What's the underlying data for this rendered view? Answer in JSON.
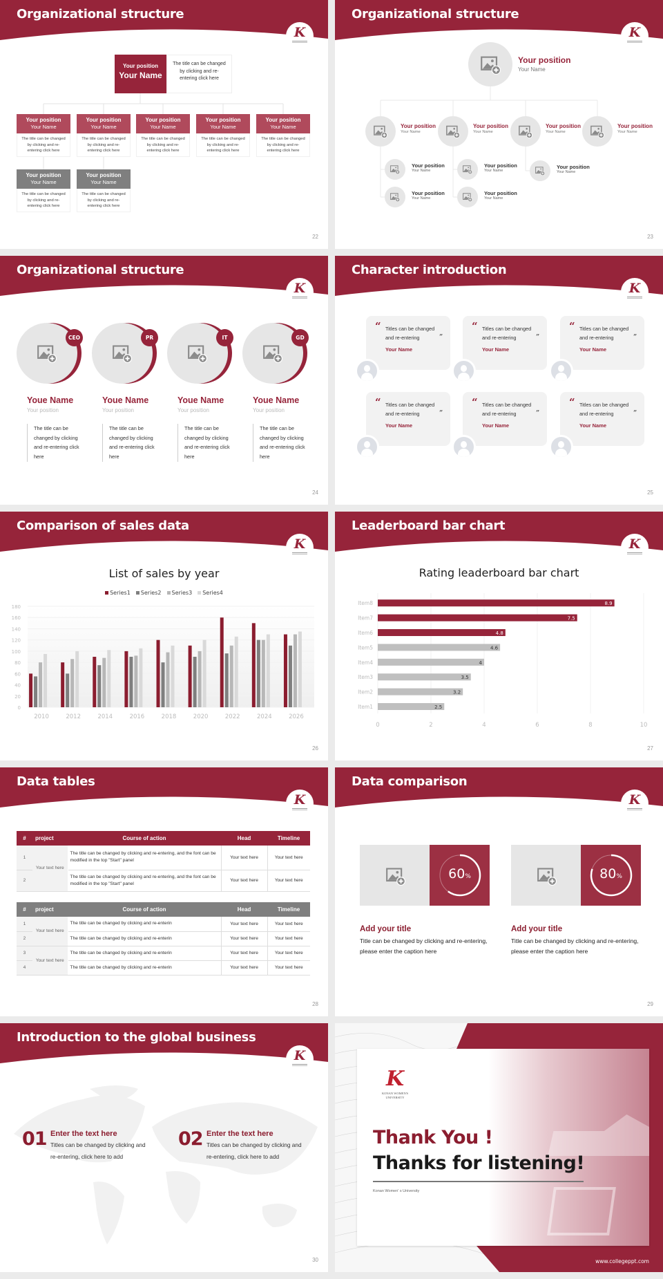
{
  "colors": {
    "accent": "#96243a",
    "gray": "#7f7f7f",
    "light_gray": "#e6e6e6",
    "bar_gray": "#bfbfbf"
  },
  "logo": {
    "letter": "K",
    "caption": "KONAN WOMEN'S UNIVERSITY"
  },
  "slides": {
    "s22": {
      "title": "Organizational structure",
      "page": "22",
      "top": {
        "position": "Your position",
        "name": "Your Name",
        "desc": "The title can be changed by clicking and re-entering click here"
      },
      "members": [
        {
          "position": "Your position",
          "name": "Your Name",
          "desc": "The title can be changed by clicking and re-entering click here",
          "tier": "primary"
        },
        {
          "position": "Your position",
          "name": "Your Name",
          "desc": "The title can be changed by clicking and re-entering click here",
          "tier": "primary"
        },
        {
          "position": "Your position",
          "name": "Your Name",
          "desc": "The title can be changed by clicking and re-entering click here",
          "tier": "primary"
        },
        {
          "position": "Your position",
          "name": "Your Name",
          "desc": "The title can be changed by clicking and re-entering click here",
          "tier": "primary"
        },
        {
          "position": "Your position",
          "name": "Your Name",
          "desc": "The title can be changed by clicking and re-entering click here",
          "tier": "primary"
        },
        {
          "position": "Your position",
          "name": "Your Name",
          "desc": "The title can be changed by clicking and re-entering click here",
          "tier": "secondary"
        },
        {
          "position": "Your position",
          "name": "Your Name",
          "desc": "The title can be changed by clicking and re-entering click here",
          "tier": "secondary"
        }
      ]
    },
    "s23": {
      "title": "Organizational structure",
      "page": "23",
      "top": {
        "position": "Your position",
        "name": "Your Name"
      },
      "groups": [
        {
          "position": "Your position",
          "name": "Your Name",
          "children": [
            {
              "position": "Your position",
              "name": "Your Name"
            },
            {
              "position": "Your position",
              "name": "Your Name"
            }
          ]
        },
        {
          "position": "Your position",
          "name": "Your Name",
          "children": [
            {
              "position": "Your position",
              "name": "Your Name"
            },
            {
              "position": "Your position",
              "name": "Your Name"
            }
          ]
        },
        {
          "position": "Your position",
          "name": "Your Name",
          "children": [
            {
              "position": "Your position",
              "name": "Your Name"
            }
          ]
        },
        {
          "position": "Your position",
          "name": "Your Name",
          "children": []
        }
      ]
    },
    "s24": {
      "title": "Organizational structure",
      "page": "24",
      "members": [
        {
          "badge": "CEO",
          "name": "Youe Name",
          "position": "Your position",
          "desc": "The title can be changed by clicking and re-entering click here"
        },
        {
          "badge": "PR",
          "name": "Youe Name",
          "position": "Your position",
          "desc": "The title can be changed by clicking and re-entering click here"
        },
        {
          "badge": "IT",
          "name": "Youe Name",
          "position": "Your position",
          "desc": "The title can be changed by clicking and re-entering click here"
        },
        {
          "badge": "GD",
          "name": "Youe Name",
          "position": "Your position",
          "desc": "The title can be changed by clicking and re-entering click here"
        }
      ]
    },
    "s25": {
      "title": "Character introduction",
      "page": "25",
      "open_quote": "“",
      "close_quote": "”",
      "cards": [
        {
          "quote": "Titles can be changed and re-entering",
          "name": "Your Name"
        },
        {
          "quote": "Titles can be changed and re-entering",
          "name": "Your Name"
        },
        {
          "quote": "Titles can be changed and re-entering",
          "name": "Your Name"
        },
        {
          "quote": "Titles can be changed and re-entering",
          "name": "Your Name"
        },
        {
          "quote": "Titles can be changed and re-entering",
          "name": "Your Name"
        },
        {
          "quote": "Titles can be changed and re-entering",
          "name": "Your Name"
        }
      ]
    },
    "s26": {
      "title": "Comparison of sales data",
      "page": "26"
    },
    "s27": {
      "title": "Leaderboard bar chart",
      "page": "27"
    },
    "s28": {
      "title": "Data tables",
      "page": "28",
      "headers": [
        "#",
        "project",
        "Course of action",
        "Head",
        "Timeline"
      ],
      "table1": {
        "rows": [
          {
            "num": "1",
            "action": "The title can be changed by clicking and re-entering, and the font can be modified in the top \"Start\" panel",
            "head": "Your text here",
            "timeline": "Your text here"
          },
          {
            "num": "2",
            "action": "The title can be changed by clicking and re-entering, and the font can be modified in the top \"Start\" panel",
            "head": "Your text here",
            "timeline": "Your text here"
          }
        ],
        "projects": [
          "Your text here"
        ]
      },
      "table2": {
        "rows": [
          {
            "num": "1",
            "action": "The title can be changed by clicking and re-enterin",
            "head": "Your text here",
            "timeline": "Your text here"
          },
          {
            "num": "2",
            "action": "The title can be changed by clicking and re-enterin",
            "head": "Your text here",
            "timeline": "Your text here"
          },
          {
            "num": "3",
            "action": "The title can be changed by clicking and re-enterin",
            "head": "Your text here",
            "timeline": "Your text here"
          },
          {
            "num": "4",
            "action": "The title can be changed by clicking and re-enterin",
            "head": "Your text here",
            "timeline": "Your text here"
          }
        ],
        "projects": [
          "Your text here",
          "Your text here"
        ]
      }
    },
    "s29": {
      "title": "Data comparison",
      "page": "29",
      "unit": "%",
      "items": [
        {
          "percent": 60,
          "label": "60",
          "title": "Add your title",
          "text": "Title can be changed by clicking and re-entering, please enter the caption here"
        },
        {
          "percent": 80,
          "label": "80",
          "title": "Add your title",
          "text": "Title can be changed by clicking and re-entering, please enter the caption here"
        }
      ]
    },
    "s30": {
      "title": "Introduction to the global business",
      "page": "30",
      "items": [
        {
          "num": "01",
          "heading": "Enter the text here",
          "text": "Titles can be changed by clicking and re-entering, click here to add"
        },
        {
          "num": "02",
          "heading": "Enter the text here",
          "text": "Titles can be changed by clicking and re-entering, click here to add"
        }
      ]
    },
    "s31": {
      "thank_you": "Thank You !",
      "thanks": "Thanks for listening!",
      "org": "Konan Women' s University",
      "url": "www.collegeppt.com"
    }
  },
  "chart_data": [
    {
      "type": "bar",
      "title": "List of sales by year",
      "categories": [
        "2010",
        "2012",
        "2014",
        "2016",
        "2018",
        "2020",
        "2022",
        "2024",
        "2026"
      ],
      "series": [
        {
          "name": "Series1",
          "color": "#8b1d2f",
          "values": [
            60,
            80,
            90,
            100,
            120,
            110,
            160,
            150,
            130
          ]
        },
        {
          "name": "Series2",
          "color": "#7f7f7f",
          "values": [
            55,
            60,
            75,
            90,
            80,
            90,
            96,
            120,
            110
          ]
        },
        {
          "name": "Series3",
          "color": "#b7b7b7",
          "values": [
            80,
            86,
            88,
            92,
            98,
            100,
            110,
            120,
            130
          ]
        },
        {
          "name": "Series4",
          "color": "#d9d9d9",
          "values": [
            95,
            100,
            102,
            105,
            110,
            120,
            126,
            130,
            135
          ]
        }
      ],
      "yticks": [
        "0",
        "20",
        "40",
        "60",
        "80",
        "100",
        "120",
        "140",
        "160",
        "180"
      ],
      "ylim": [
        0,
        180
      ],
      "legend": "top",
      "grid": true
    },
    {
      "type": "bar",
      "orientation": "horizontal",
      "title": "Rating leaderboard bar chart",
      "categories": [
        "Item1",
        "Item2",
        "Item3",
        "Item4",
        "Item5",
        "Item6",
        "Item7",
        "Item8"
      ],
      "values": [
        2.5,
        3.2,
        3.5,
        4,
        4.6,
        4.8,
        7.5,
        8.9
      ],
      "labels": [
        "2.5",
        "3.2",
        "3.5",
        "4",
        "4.6",
        "4.8",
        "7.5",
        "8.9"
      ],
      "highlight_top": 3,
      "xticks": [
        "0",
        "2",
        "4",
        "6",
        "8",
        "10"
      ],
      "xlim": [
        0,
        10
      ],
      "grid": true
    }
  ]
}
